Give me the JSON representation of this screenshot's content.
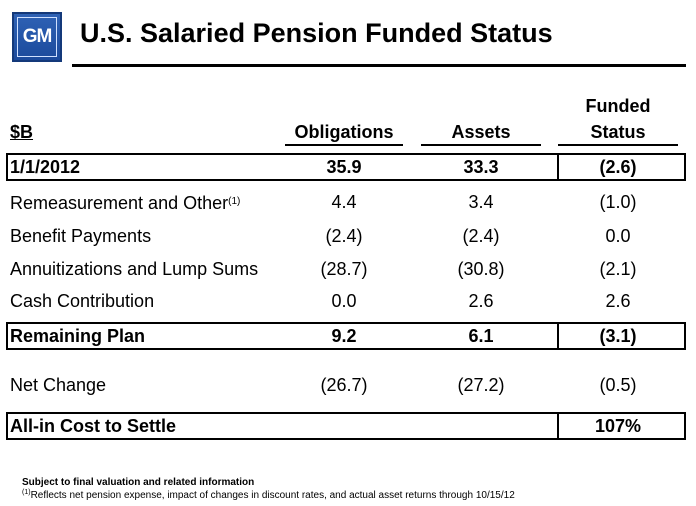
{
  "header": {
    "logo_text": "GM",
    "title": "U.S. Salaried Pension Funded Status"
  },
  "table": {
    "columns": {
      "label": "$B",
      "obligations": "Obligations",
      "assets": "Assets",
      "funded_line1": "Funded",
      "funded_line2": "Status"
    },
    "rows": [
      {
        "label": "1/1/2012",
        "obligations": "35.9",
        "assets": "33.3",
        "funded": "(2.6)"
      },
      {
        "label": "Remeasurement and Other",
        "footnote_mark": "(1)",
        "obligations": "4.4",
        "assets": "3.4",
        "funded": "(1.0)"
      },
      {
        "label": "Benefit Payments",
        "obligations": "(2.4)",
        "assets": "(2.4)",
        "funded": "0.0"
      },
      {
        "label": "Annuitizations and Lump Sums",
        "obligations": "(28.7)",
        "assets": "(30.8)",
        "funded": "(2.1)"
      },
      {
        "label": "Cash Contribution",
        "obligations": "0.0",
        "assets": "2.6",
        "funded": "2.6"
      },
      {
        "label": "Remaining Plan",
        "obligations": "9.2",
        "assets": "6.1",
        "funded": "(3.1)"
      },
      {
        "label": "Net Change",
        "obligations": "(26.7)",
        "assets": "(27.2)",
        "funded": "(0.5)"
      },
      {
        "label": "All-in Cost to Settle",
        "funded": "107%"
      }
    ]
  },
  "footnotes": {
    "note1": "Subject to final valuation and related information",
    "note2_mark": "(1)",
    "note2": "Reflects net pension expense, impact of changes in discount rates, and actual asset returns through 10/15/12"
  }
}
